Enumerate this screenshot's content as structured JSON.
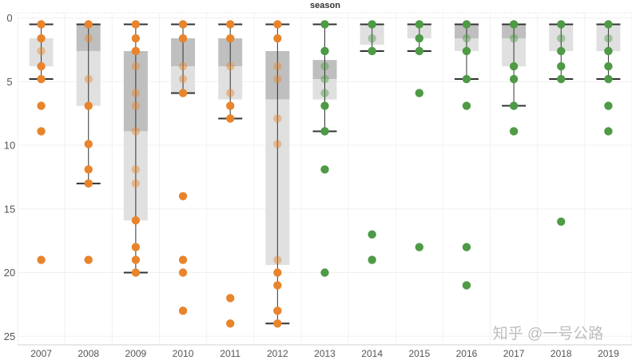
{
  "chart_data": {
    "type": "boxplot",
    "title": "season",
    "xlabel": "",
    "ylabel": "",
    "y_reversed": true,
    "ylim": [
      0,
      26
    ],
    "y_ticks": [
      0,
      5,
      10,
      15,
      20,
      25
    ],
    "grid": "horizontal",
    "categories": [
      "2007",
      "2008",
      "2009",
      "2010",
      "2011",
      "2012",
      "2013",
      "2014",
      "2015",
      "2016",
      "2017",
      "2018",
      "2019"
    ],
    "colors": {
      "early": "#E8842B",
      "late": "#4E9A45"
    },
    "boxes": [
      {
        "season": "2007",
        "group": "early",
        "q1": 1.6,
        "median": null,
        "q3": 3.8,
        "whisker_low": 0.5,
        "whisker_high": 4.8,
        "points": [
          0.5,
          1.6,
          2.6,
          3.8,
          4.8,
          6.9,
          8.9,
          19.0
        ]
      },
      {
        "season": "2008",
        "group": "early",
        "q1": 0.5,
        "median": 2.6,
        "q3": 6.9,
        "whisker_low": 0.5,
        "whisker_high": 13.0,
        "points": [
          0.5,
          1.6,
          4.8,
          6.9,
          9.9,
          11.9,
          13.0,
          19.0
        ]
      },
      {
        "season": "2009",
        "group": "early",
        "q1": 2.6,
        "median": 8.9,
        "q3": 15.9,
        "whisker_low": 0.5,
        "whisker_high": 20.0,
        "points": [
          0.5,
          1.6,
          2.6,
          3.8,
          5.9,
          6.9,
          8.9,
          11.9,
          13.0,
          15.9,
          18.0,
          19.0,
          20.0
        ]
      },
      {
        "season": "2010",
        "group": "early",
        "q1": 1.6,
        "median": 3.8,
        "q3": 5.9,
        "whisker_low": 0.5,
        "whisker_high": 5.9,
        "points": [
          0.5,
          1.6,
          3.8,
          4.8,
          5.9,
          14.0,
          19.0,
          20.0,
          23.0
        ]
      },
      {
        "season": "2011",
        "group": "early",
        "q1": 1.6,
        "median": 3.8,
        "q3": 6.4,
        "whisker_low": 0.5,
        "whisker_high": 7.9,
        "points": [
          0.5,
          1.6,
          3.8,
          5.9,
          6.9,
          7.9,
          22.0,
          24.0
        ]
      },
      {
        "season": "2012",
        "group": "early",
        "q1": 2.6,
        "median": 6.4,
        "q3": 19.4,
        "whisker_low": 0.5,
        "whisker_high": 24.0,
        "points": [
          0.5,
          1.6,
          3.8,
          4.8,
          7.9,
          9.9,
          19.0,
          20.0,
          21.0,
          23.0,
          24.0
        ]
      },
      {
        "season": "2013",
        "group": "late",
        "q1": 3.3,
        "median": 4.8,
        "q3": 6.4,
        "whisker_low": 0.5,
        "whisker_high": 8.9,
        "points": [
          0.5,
          2.6,
          3.8,
          4.8,
          5.9,
          6.9,
          8.9,
          11.9,
          20.0
        ]
      },
      {
        "season": "2014",
        "group": "late",
        "q1": 0.5,
        "median": null,
        "q3": 2.1,
        "whisker_low": 0.5,
        "whisker_high": 2.6,
        "points": [
          0.5,
          1.6,
          2.6,
          17.0,
          19.0
        ]
      },
      {
        "season": "2015",
        "group": "late",
        "q1": 0.5,
        "median": null,
        "q3": 1.6,
        "whisker_low": 0.5,
        "whisker_high": 2.6,
        "points": [
          0.5,
          1.6,
          2.6,
          5.9,
          18.0
        ]
      },
      {
        "season": "2016",
        "group": "late",
        "q1": 0.5,
        "median": 1.6,
        "q3": 2.6,
        "whisker_low": 0.5,
        "whisker_high": 4.8,
        "points": [
          0.5,
          1.6,
          2.6,
          4.8,
          6.9,
          18.0,
          21.0
        ]
      },
      {
        "season": "2017",
        "group": "late",
        "q1": 0.5,
        "median": 1.6,
        "q3": 3.8,
        "whisker_low": 0.5,
        "whisker_high": 6.9,
        "points": [
          0.5,
          1.6,
          3.8,
          4.8,
          6.9,
          8.9
        ]
      },
      {
        "season": "2018",
        "group": "late",
        "q1": 0.5,
        "median": null,
        "q3": 2.6,
        "whisker_low": 0.5,
        "whisker_high": 4.8,
        "points": [
          0.5,
          1.6,
          2.6,
          3.8,
          4.8,
          16.0
        ]
      },
      {
        "season": "2019",
        "group": "late",
        "q1": 0.5,
        "median": null,
        "q3": 2.6,
        "whisker_low": 0.5,
        "whisker_high": 4.8,
        "points": [
          0.5,
          1.6,
          2.6,
          3.8,
          4.8,
          6.9,
          8.9
        ]
      }
    ]
  },
  "watermark": "知乎 @一号公路"
}
